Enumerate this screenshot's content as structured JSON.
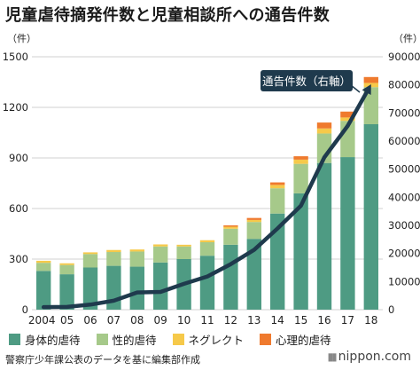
{
  "title": "児童虐待摘発件数と児童相談所への通告件数",
  "source": "警察庁少年課公表のデータを基に編集部作成",
  "brand": "nippon.com",
  "chart_data": {
    "type": "bar",
    "stacked": true,
    "categories": [
      "2004",
      "05",
      "06",
      "07",
      "08",
      "09",
      "10",
      "11",
      "12",
      "13",
      "14",
      "15",
      "16",
      "17",
      "18"
    ],
    "left_axis": {
      "unit": "（件）",
      "ticks": [
        "0",
        "300",
        "600",
        "900",
        "1200",
        "1500"
      ],
      "ylim": [
        0,
        1500
      ]
    },
    "right_axis": {
      "unit": "（件）",
      "ticks": [
        "0",
        "10000",
        "20000",
        "30000",
        "40000",
        "50000",
        "60000",
        "70000",
        "80000",
        "90000"
      ],
      "ylim": [
        0,
        90000
      ]
    },
    "grid": true,
    "series": [
      {
        "name": "身体的虐待",
        "color": "#4e9b83",
        "values": [
          230,
          210,
          250,
          260,
          255,
          280,
          300,
          320,
          385,
          420,
          570,
          690,
          870,
          905,
          1100
        ]
      },
      {
        "name": "性的虐待",
        "color": "#a6c98a",
        "values": [
          48,
          55,
          80,
          82,
          90,
          95,
          75,
          80,
          95,
          100,
          150,
          175,
          175,
          215,
          220
        ]
      },
      {
        "name": "ネグレクト",
        "color": "#f6c94a",
        "values": [
          12,
          10,
          10,
          12,
          12,
          12,
          10,
          12,
          12,
          12,
          20,
          25,
          30,
          20,
          25
        ]
      },
      {
        "name": "心理的虐待",
        "color": "#ef7a2e",
        "values": [
          0,
          0,
          0,
          0,
          0,
          0,
          0,
          0,
          8,
          12,
          15,
          20,
          35,
          35,
          35
        ]
      }
    ],
    "line": {
      "name": "通告件数（右軸）",
      "color": "#1f3a4d",
      "values": [
        900,
        1000,
        1800,
        3200,
        6100,
        6300,
        9200,
        11800,
        16200,
        21300,
        28900,
        37000,
        54200,
        65400,
        80200
      ]
    },
    "legend_position": "bottom"
  }
}
